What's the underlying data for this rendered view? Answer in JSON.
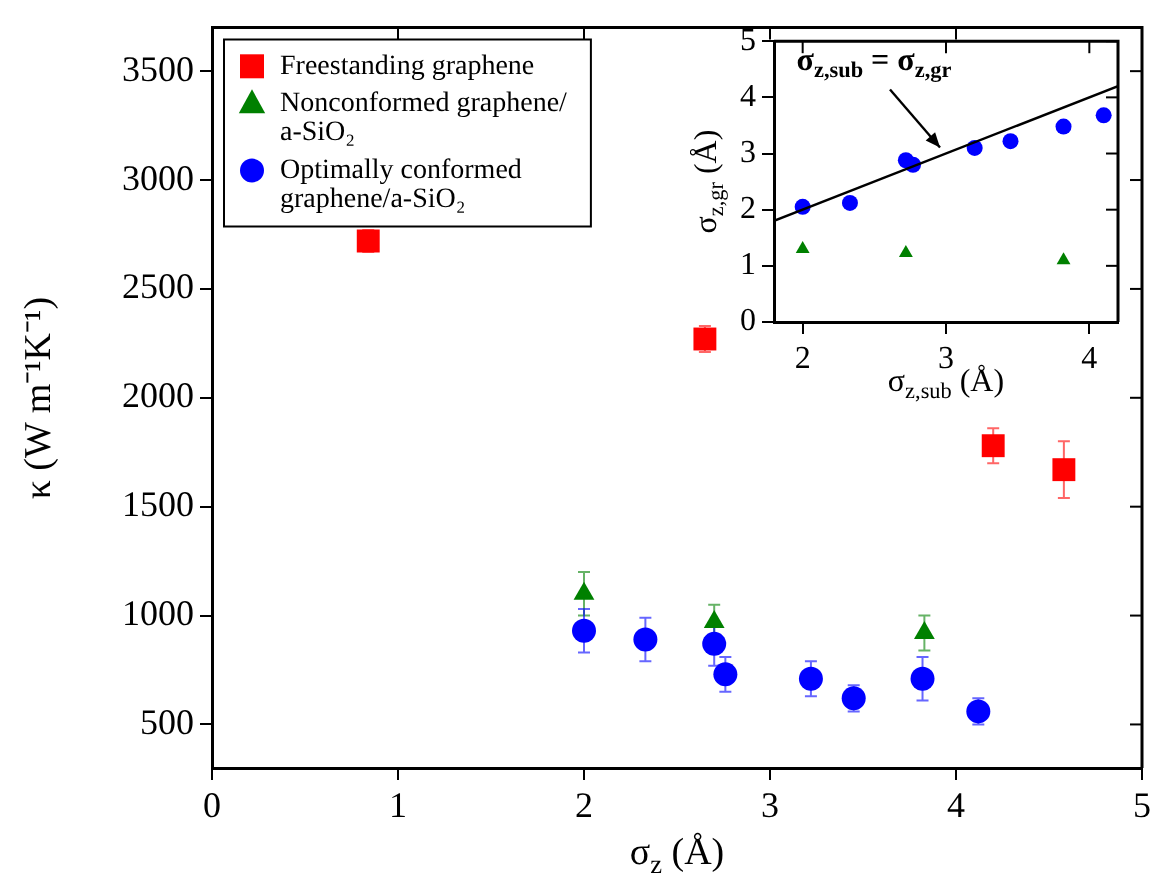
{
  "chart_data": [
    {
      "type": "scatter",
      "xlabel": "σ$_{z}$ (Å)",
      "ylabel": "κ (W m⁻¹K⁻¹)",
      "xlim": [
        0,
        5
      ],
      "xticks": [
        0,
        1,
        2,
        3,
        4,
        5
      ],
      "ylim": [
        300,
        3700
      ],
      "yticks": [
        500,
        1000,
        1500,
        2000,
        2500,
        3000,
        3500
      ],
      "grid": false,
      "legend": "top left",
      "series": [
        {
          "name": "Freestanding graphene",
          "color": "#ff0000",
          "marker": "square",
          "x": [
            0.84,
            2.65,
            4.2,
            4.58
          ],
          "values": [
            2720,
            2270,
            1780,
            1670
          ],
          "errors": [
            50,
            60,
            80,
            130
          ]
        },
        {
          "name": "Nonconformed graphene/a-SiO₂",
          "color": "#008000",
          "marker": "triangle",
          "x": [
            2.0,
            2.7,
            3.83
          ],
          "values": [
            1100,
            970,
            920
          ],
          "errors": [
            100,
            80,
            80
          ]
        },
        {
          "name": "Optimally conformed graphene/a-SiO₂",
          "color": "#0000ff",
          "marker": "circle",
          "x": [
            2.0,
            2.33,
            2.7,
            2.76,
            3.22,
            3.45,
            3.82,
            4.12
          ],
          "values": [
            930,
            890,
            870,
            730,
            710,
            620,
            710,
            560
          ],
          "errors": [
            100,
            100,
            100,
            80,
            80,
            60,
            100,
            60
          ]
        }
      ]
    },
    {
      "type": "scatter",
      "xlabel": "σ$_{z,sub}$ (Å)",
      "ylabel": "σ$_{z,gr}$ (Å)",
      "xlim": [
        1.8,
        4.2
      ],
      "xticks": [
        2,
        3,
        4
      ],
      "ylim": [
        0,
        5
      ],
      "yticks": [
        0,
        1,
        2,
        3,
        4,
        5
      ],
      "grid": false,
      "annotations": [
        {
          "text": "σ$_{z,sub}$ = σ$_{z,gr}$",
          "x": 3.0,
          "y": 3.0
        }
      ],
      "series": [
        {
          "type": "line",
          "color": "#000000",
          "marker": "none",
          "x": [
            1.8,
            4.2
          ],
          "values": [
            1.8,
            4.2
          ]
        },
        {
          "color": "#008000",
          "marker": "triangle",
          "x": [
            2.0,
            2.72,
            3.82
          ],
          "values": [
            1.3,
            1.23,
            1.1
          ]
        },
        {
          "color": "#0000ff",
          "marker": "circle",
          "x": [
            2.0,
            2.33,
            2.72,
            2.77,
            3.2,
            3.45,
            3.82,
            4.1
          ],
          "values": [
            2.05,
            2.12,
            2.88,
            2.8,
            3.1,
            3.22,
            3.48,
            3.68
          ]
        }
      ]
    }
  ]
}
